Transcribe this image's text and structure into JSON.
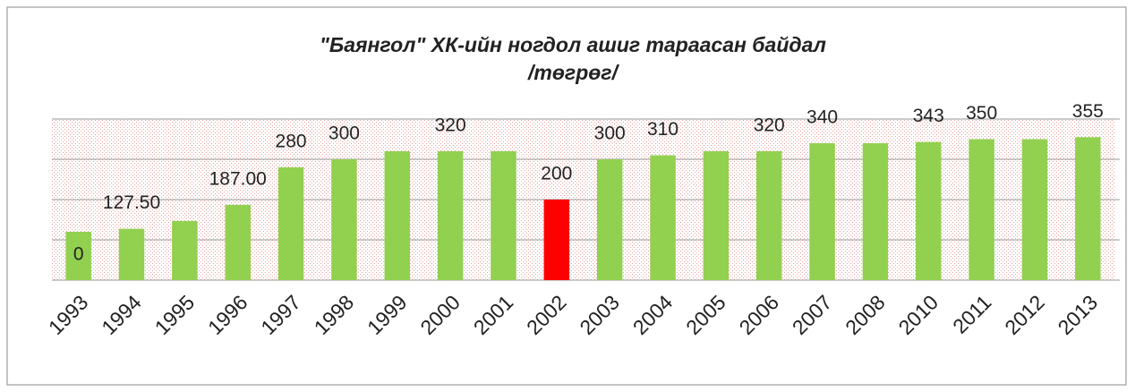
{
  "chart_data": {
    "type": "bar",
    "title": "\"Баянгол\" ХК-ийн ногдол ашиг тараасан байдал",
    "subtitle": "/төгрөг/",
    "categories": [
      "1993",
      "1994",
      "1995",
      "1996",
      "1997",
      "1998",
      "1999",
      "2000",
      "2001",
      "2002",
      "2003",
      "2004",
      "2005",
      "2006",
      "2007",
      "2008",
      "2010",
      "2011",
      "2012",
      "2013"
    ],
    "values": [
      120,
      127.5,
      147,
      187,
      280,
      300,
      320,
      320,
      320,
      200,
      300,
      310,
      320,
      320,
      340,
      340,
      343,
      350,
      350,
      355
    ],
    "value_labels": [
      null,
      "127.50",
      null,
      "187.00",
      "280",
      "300",
      null,
      "320",
      null,
      "200",
      "300",
      "310",
      null,
      "320",
      "340",
      null,
      "343",
      "350",
      null,
      "355"
    ],
    "colors": [
      "#92d050",
      "#92d050",
      "#92d050",
      "#92d050",
      "#92d050",
      "#92d050",
      "#92d050",
      "#92d050",
      "#92d050",
      "#ff0000",
      "#92d050",
      "#92d050",
      "#92d050",
      "#92d050",
      "#92d050",
      "#92d050",
      "#92d050",
      "#92d050",
      "#92d050",
      "#92d050"
    ],
    "annotations": [
      "0"
    ],
    "ylim": [
      0,
      400
    ],
    "yticks": [
      0,
      100,
      200,
      300,
      400
    ],
    "grid": true
  }
}
